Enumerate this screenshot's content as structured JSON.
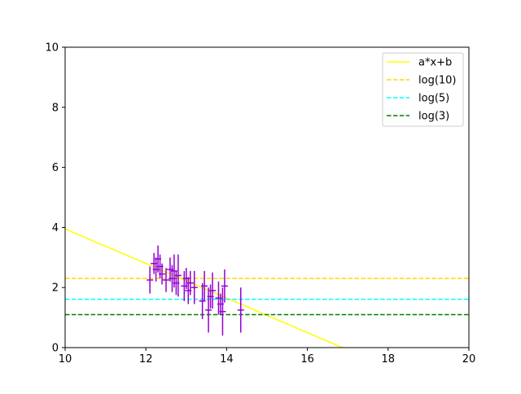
{
  "chart_data": {
    "type": "scatter",
    "title": "",
    "xlabel": "",
    "ylabel": "",
    "xlim": [
      10,
      20
    ],
    "ylim": [
      0,
      10
    ],
    "grid": false,
    "legend_position": "top-right",
    "xticks": [
      "10",
      "12",
      "14",
      "16",
      "18",
      "20"
    ],
    "yticks": [
      "0",
      "2",
      "4",
      "6",
      "8",
      "10"
    ],
    "points_color": "#9400d3",
    "points": [
      {
        "x": 12.1,
        "y": 2.25,
        "xerr": 0.08,
        "yerr": 0.45
      },
      {
        "x": 12.2,
        "y": 2.8,
        "xerr": 0.08,
        "yerr": 0.35
      },
      {
        "x": 12.25,
        "y": 2.6,
        "xerr": 0.08,
        "yerr": 0.4
      },
      {
        "x": 12.3,
        "y": 2.95,
        "xerr": 0.08,
        "yerr": 0.45
      },
      {
        "x": 12.35,
        "y": 2.7,
        "xerr": 0.08,
        "yerr": 0.4
      },
      {
        "x": 12.4,
        "y": 2.45,
        "xerr": 0.08,
        "yerr": 0.35
      },
      {
        "x": 12.5,
        "y": 2.25,
        "xerr": 0.08,
        "yerr": 0.4
      },
      {
        "x": 12.6,
        "y": 2.6,
        "xerr": 0.08,
        "yerr": 0.4
      },
      {
        "x": 12.65,
        "y": 2.3,
        "xerr": 0.08,
        "yerr": 0.45
      },
      {
        "x": 12.7,
        "y": 2.55,
        "xerr": 0.08,
        "yerr": 0.55
      },
      {
        "x": 12.75,
        "y": 2.15,
        "xerr": 0.08,
        "yerr": 0.4
      },
      {
        "x": 12.8,
        "y": 2.4,
        "xerr": 0.08,
        "yerr": 0.7
      },
      {
        "x": 12.95,
        "y": 2.05,
        "xerr": 0.08,
        "yerr": 0.5
      },
      {
        "x": 13.0,
        "y": 2.3,
        "xerr": 0.08,
        "yerr": 0.35
      },
      {
        "x": 13.05,
        "y": 1.9,
        "xerr": 0.08,
        "yerr": 0.45
      },
      {
        "x": 13.1,
        "y": 2.15,
        "xerr": 0.08,
        "yerr": 0.4
      },
      {
        "x": 13.2,
        "y": 2.0,
        "xerr": 0.08,
        "yerr": 0.55
      },
      {
        "x": 13.4,
        "y": 1.55,
        "xerr": 0.08,
        "yerr": 0.6
      },
      {
        "x": 13.45,
        "y": 2.05,
        "xerr": 0.08,
        "yerr": 0.5
      },
      {
        "x": 13.55,
        "y": 1.25,
        "xerr": 0.08,
        "yerr": 0.75
      },
      {
        "x": 13.6,
        "y": 1.7,
        "xerr": 0.08,
        "yerr": 0.4
      },
      {
        "x": 13.65,
        "y": 1.9,
        "xerr": 0.08,
        "yerr": 0.6
      },
      {
        "x": 13.8,
        "y": 1.65,
        "xerr": 0.08,
        "yerr": 0.55
      },
      {
        "x": 13.85,
        "y": 1.45,
        "xerr": 0.08,
        "yerr": 0.35
      },
      {
        "x": 13.9,
        "y": 1.2,
        "xerr": 0.08,
        "yerr": 0.8
      },
      {
        "x": 13.95,
        "y": 2.05,
        "xerr": 0.08,
        "yerr": 0.55
      },
      {
        "x": 14.35,
        "y": 1.25,
        "xerr": 0.08,
        "yerr": 0.75
      }
    ],
    "lines": [
      {
        "name": "a*x+b",
        "kind": "linear",
        "color": "#ffff00",
        "dash": "solid",
        "x0": 10,
        "y0": 3.95,
        "x1": 16.87,
        "y1": 0
      },
      {
        "name": "log(10)",
        "kind": "hline",
        "color": "#ffd700",
        "dash": "dashed",
        "y": 2.302585
      },
      {
        "name": "log(5)",
        "kind": "hline",
        "color": "#00ffff",
        "dash": "dashed",
        "y": 1.609438
      },
      {
        "name": "log(3)",
        "kind": "hline",
        "color": "#008000",
        "dash": "dashed",
        "y": 1.098612
      }
    ]
  }
}
